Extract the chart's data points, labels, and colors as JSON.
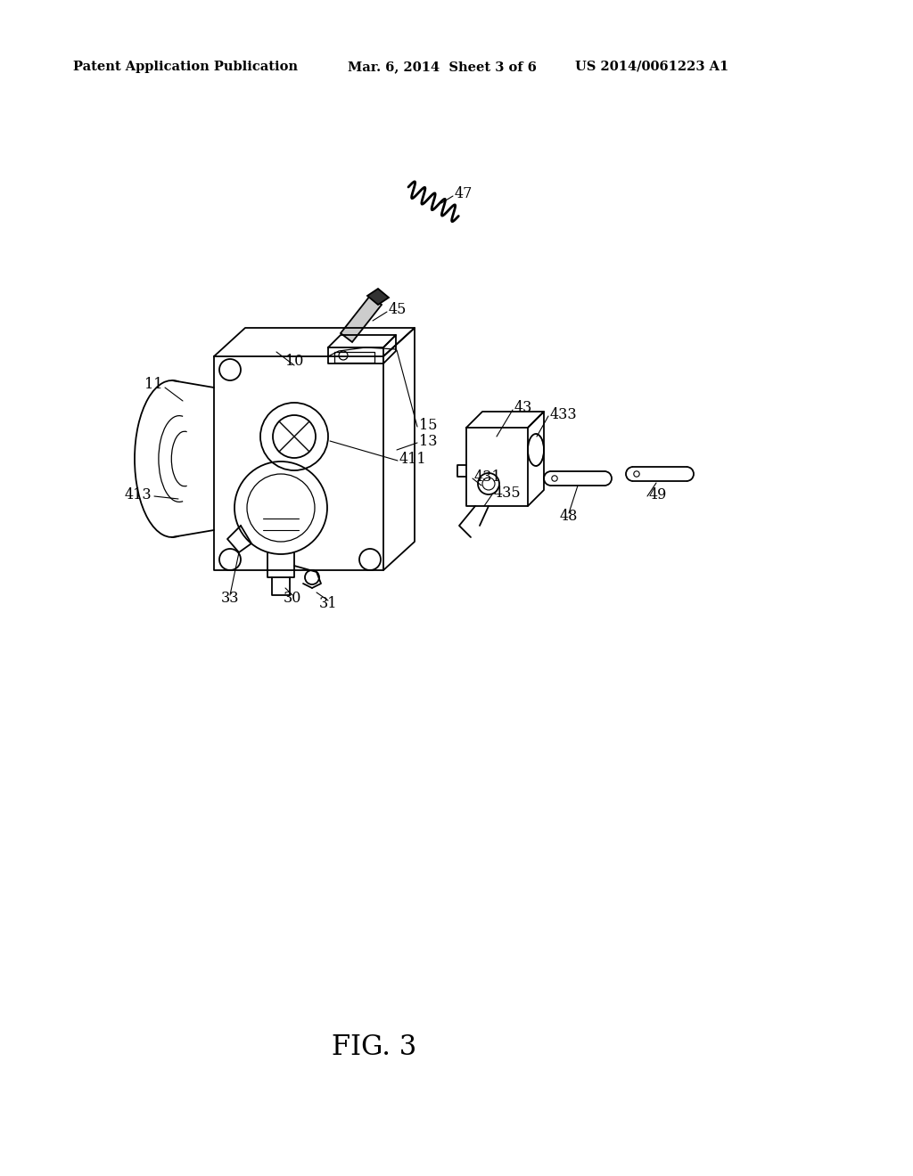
{
  "background_color": "#ffffff",
  "header_left": "Patent Application Publication",
  "header_center": "Mar. 6, 2014  Sheet 3 of 6",
  "header_right": "US 2014/0061223 A1",
  "figure_label": "FIG. 3",
  "header_fontsize": 10.5,
  "label_fontsize": 11.5,
  "fig_label_fontsize": 22,
  "fig_w": 1024,
  "fig_h": 1320
}
